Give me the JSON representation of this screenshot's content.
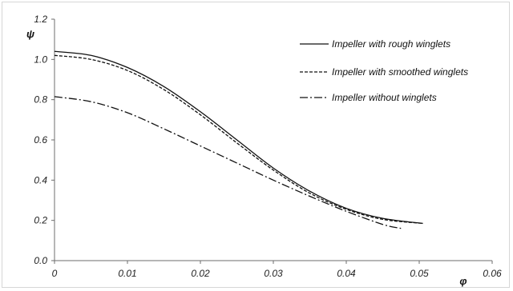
{
  "chart_data": {
    "type": "line",
    "xlabel": "φ",
    "ylabel": "ψ",
    "xlim": [
      0,
      0.06
    ],
    "ylim": [
      0,
      1.2
    ],
    "x_ticks": [
      "0",
      "0.01",
      "0.02",
      "0.03",
      "0.04",
      "0.05",
      "0.06"
    ],
    "y_ticks": [
      "0.0",
      "0.2",
      "0.4",
      "0.6",
      "0.8",
      "1.0",
      "1.2"
    ],
    "grid": false,
    "legend_position": "top-right",
    "series": [
      {
        "name": "Impeller with rough winglets",
        "line_style": "solid",
        "color": "#111111",
        "x": [
          0,
          0.005,
          0.01,
          0.015,
          0.02,
          0.025,
          0.03,
          0.035,
          0.04,
          0.045,
          0.0505
        ],
        "y": [
          1.04,
          1.02,
          0.96,
          0.865,
          0.74,
          0.6,
          0.46,
          0.345,
          0.26,
          0.21,
          0.185
        ]
      },
      {
        "name": "Impeller with smoothed winglets",
        "line_style": "dashed",
        "color": "#111111",
        "x": [
          0,
          0.005,
          0.01,
          0.015,
          0.02,
          0.025,
          0.03,
          0.035,
          0.04,
          0.045,
          0.0505
        ],
        "y": [
          1.02,
          1.0,
          0.945,
          0.85,
          0.725,
          0.585,
          0.45,
          0.335,
          0.255,
          0.205,
          0.185
        ]
      },
      {
        "name": "Impeller without winglets",
        "line_style": "dash-dot",
        "color": "#111111",
        "x": [
          0,
          0.005,
          0.01,
          0.015,
          0.02,
          0.025,
          0.03,
          0.035,
          0.04,
          0.045,
          0.0475
        ],
        "y": [
          0.815,
          0.79,
          0.735,
          0.655,
          0.57,
          0.485,
          0.4,
          0.32,
          0.245,
          0.18,
          0.16
        ]
      }
    ]
  }
}
